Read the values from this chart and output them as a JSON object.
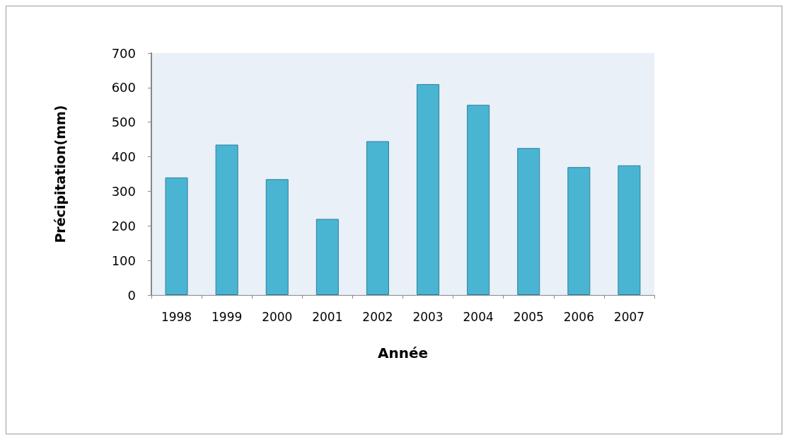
{
  "chart_data": {
    "type": "bar",
    "xlabel": "Année",
    "ylabel": "Précipitation(mm)",
    "categories": [
      "1998",
      "1999",
      "2000",
      "2001",
      "2002",
      "2003",
      "2004",
      "2005",
      "2006",
      "2007"
    ],
    "values": [
      340,
      435,
      335,
      220,
      445,
      610,
      550,
      425,
      370,
      375
    ],
    "color": "#4ab5d3",
    "ylim": [
      0,
      700
    ],
    "yticks": [
      0,
      100,
      200,
      300,
      400,
      500,
      600,
      700
    ],
    "grid": false
  }
}
